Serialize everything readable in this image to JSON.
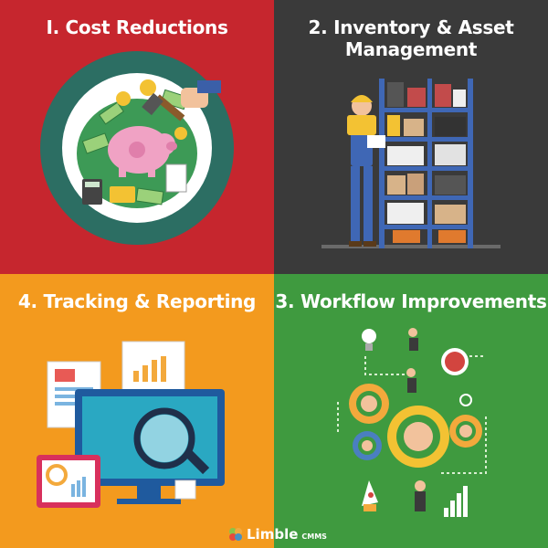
{
  "panels": [
    {
      "title": "I. Cost Reductions",
      "bg": "#c6262e",
      "icon": "piggy-bank-savings-icon"
    },
    {
      "title": "2. Inventory & Asset Management",
      "bg": "#3a3a3a",
      "icon": "warehouse-shelves-worker-icon"
    },
    {
      "title": "4. Tracking & Reporting",
      "bg": "#f39a1e",
      "icon": "monitor-analytics-icon"
    },
    {
      "title": "3. Workflow Improvements",
      "bg": "#3f9a3f",
      "icon": "gears-people-workflow-icon"
    }
  ],
  "logo": {
    "word": "Limble",
    "sub": "CMMS"
  }
}
